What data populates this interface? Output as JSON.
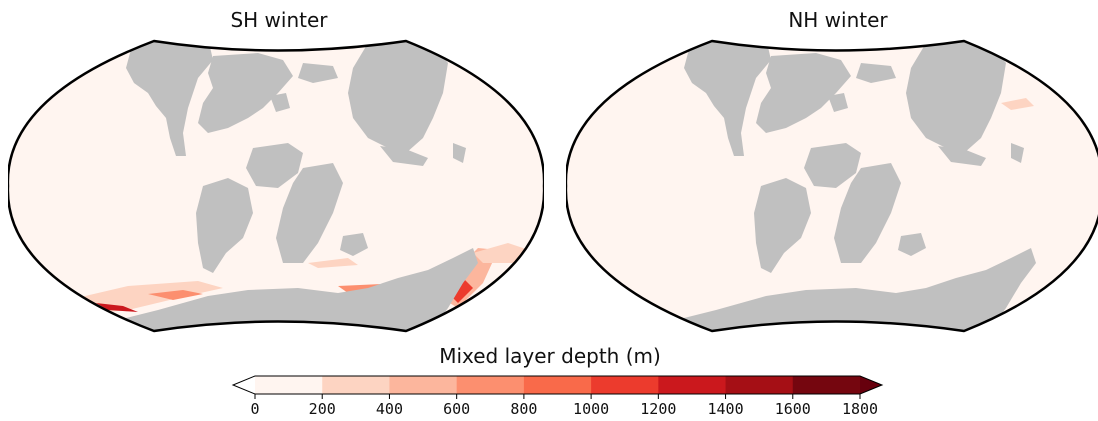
{
  "panels": [
    {
      "title": "SH winter"
    },
    {
      "title": "NH winter"
    }
  ],
  "colorbar": {
    "label": "Mixed layer depth (m)",
    "ticks": [
      "0",
      "200",
      "400",
      "600",
      "800",
      "1000",
      "1200",
      "1400",
      "1600",
      "1800"
    ],
    "colors": [
      "#fff5f0",
      "#fdd4c2",
      "#fcb69d",
      "#fc8f6f",
      "#f96a4a",
      "#ec3b2d",
      "#cb181d",
      "#a50f15",
      "#75060f"
    ],
    "under_color": "#ffffff",
    "over_color": "#67000d",
    "extend": "both"
  },
  "colors": {
    "ocean": "#fff5f0",
    "land": "#c0c0c0",
    "border": "#000000"
  }
}
